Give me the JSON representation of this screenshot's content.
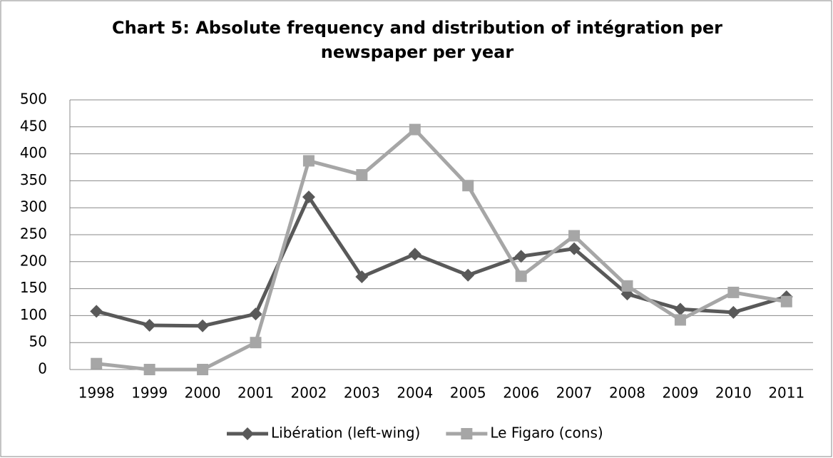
{
  "chart_data": {
    "type": "line",
    "title": "Chart 5: Absolute frequency and distribution of intégration per newspaper per year",
    "categories": [
      "1998",
      "1999",
      "2000",
      "2001",
      "2002",
      "2003",
      "2004",
      "2005",
      "2006",
      "2007",
      "2008",
      "2009",
      "2010",
      "2011"
    ],
    "series": [
      {
        "name": "Libération (left-wing)",
        "color": "#595959",
        "marker": "diamond",
        "values": [
          108,
          82,
          81,
          103,
          320,
          172,
          214,
          175,
          210,
          224,
          140,
          112,
          106,
          135
        ]
      },
      {
        "name": "Le Figaro (cons)",
        "color": "#a6a6a6",
        "marker": "square",
        "values": [
          11,
          0,
          0,
          50,
          387,
          361,
          445,
          341,
          173,
          248,
          155,
          92,
          143,
          126
        ]
      }
    ],
    "ylim": [
      0,
      500
    ],
    "yticks": [
      0,
      50,
      100,
      150,
      200,
      250,
      300,
      350,
      400,
      450,
      500
    ],
    "grid": true,
    "legend": "bottom"
  }
}
